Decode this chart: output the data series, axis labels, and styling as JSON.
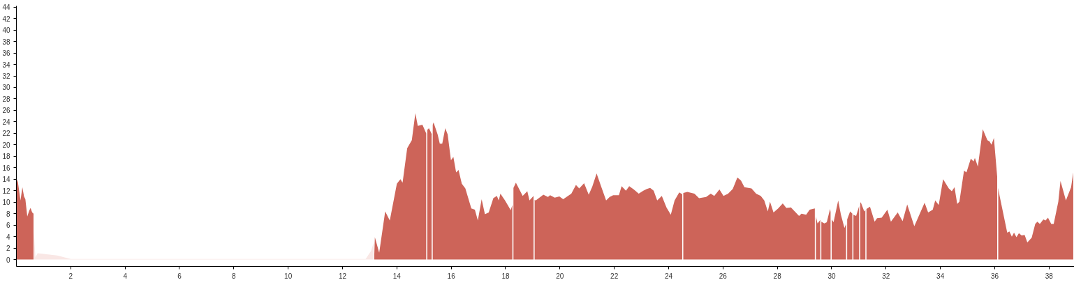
{
  "chart_data": {
    "type": "area",
    "xlim": [
      0,
      38.93
    ],
    "ylim": [
      -1.2,
      44.2
    ],
    "xticks": [
      2,
      4,
      6,
      8,
      10,
      12,
      14,
      16,
      18,
      20,
      22,
      24,
      26,
      28,
      30,
      32,
      34,
      36,
      38
    ],
    "yticks": [
      0,
      2,
      4,
      6,
      8,
      10,
      12,
      14,
      16,
      18,
      20,
      22,
      24,
      26,
      28,
      30,
      32,
      34,
      36,
      38,
      40,
      42,
      44
    ],
    "series": [
      {
        "color": "#f9e7e5",
        "x": [
          0.64,
          0.7,
          0.78,
          1.0,
          1.5,
          2.0,
          12.85,
          12.95,
          13.05,
          13.15
        ],
        "values": [
          5,
          0.4,
          1.1,
          1.0,
          0.7,
          0.1,
          0.1,
          0.8,
          1.5,
          3
        ]
      },
      {
        "color": "#cd6459",
        "x": [
          0,
          0.04,
          0.1,
          0.15,
          0.22,
          0.28,
          0.33,
          0.4,
          0.47,
          0.52,
          0.58,
          0.63,
          1.0,
          13.17,
          13.19,
          13.35,
          13.57,
          13.74,
          14.0,
          14.13,
          14.21,
          14.38,
          14.55,
          14.68,
          14.77,
          14.94,
          15.08,
          15.1,
          15.12,
          15.18,
          15.28,
          15.3,
          15.32,
          15.35,
          15.5,
          15.58,
          15.67,
          15.78,
          15.87,
          15.99,
          16.08,
          16.18,
          16.27,
          16.39,
          16.52,
          16.74,
          16.87,
          16.98,
          17.12,
          17.24,
          17.38,
          17.55,
          17.68,
          17.75,
          17.81,
          17.98,
          18.19,
          18.25,
          18.27,
          18.29,
          18.38,
          18.63,
          18.8,
          18.88,
          19.03,
          19.05,
          19.07,
          19.11,
          19.39,
          19.56,
          19.64,
          19.81,
          19.98,
          20.12,
          20.42,
          20.59,
          20.71,
          20.89,
          21.06,
          21.19,
          21.35,
          21.52,
          21.7,
          21.83,
          21.96,
          22.17,
          22.27,
          22.43,
          22.55,
          22.72,
          22.9,
          23.07,
          23.2,
          23.32,
          23.45,
          23.58,
          23.75,
          23.92,
          24.08,
          24.22,
          24.39,
          24.5,
          24.52,
          24.54,
          24.69,
          24.95,
          25.12,
          25.38,
          25.55,
          25.68,
          25.87,
          26.02,
          26.19,
          26.36,
          26.53,
          26.66,
          26.79,
          27.05,
          27.22,
          27.39,
          27.52,
          27.65,
          27.73,
          27.86,
          28.03,
          28.2,
          28.33,
          28.5,
          28.8,
          28.89,
          29.06,
          29.19,
          29.38,
          29.4,
          29.42,
          29.48,
          29.58,
          29.6,
          29.62,
          29.73,
          29.82,
          29.94,
          29.96,
          29.98,
          30.0,
          30.07,
          30.24,
          30.34,
          30.47,
          30.53,
          30.55,
          30.57,
          30.68,
          30.76,
          30.78,
          30.8,
          30.9,
          31.01,
          31.03,
          31.05,
          31.07,
          31.2,
          31.24,
          31.26,
          31.28,
          31.41,
          31.58,
          31.67,
          31.84,
          32.05,
          32.18,
          32.43,
          32.61,
          32.78,
          33.04,
          33.17,
          33.42,
          33.55,
          33.72,
          33.81,
          33.94,
          34.1,
          34.31,
          34.42,
          34.52,
          34.62,
          34.7,
          34.87,
          34.96,
          35.12,
          35.22,
          35.27,
          35.38,
          35.56,
          35.73,
          35.81,
          35.88,
          35.97,
          36.09,
          36.11,
          36.13,
          36.18,
          36.46,
          36.54,
          36.63,
          36.71,
          36.8,
          36.89,
          36.99,
          37.1,
          37.2,
          37.36,
          37.49,
          37.57,
          37.66,
          37.79,
          37.87,
          37.96,
          38.08,
          38.17,
          38.34,
          38.42,
          38.62,
          38.81,
          38.89
        ],
        "values": [
          13.2,
          14,
          12,
          10.3,
          12.6,
          11,
          10.5,
          7.5,
          8.5,
          9,
          8.2,
          8,
          null,
          1,
          3.9,
          1.2,
          8.4,
          6.8,
          13.2,
          14.0,
          13.4,
          19.4,
          20.8,
          25.5,
          23.3,
          23.5,
          22.0,
          null,
          22.6,
          22.9,
          21.9,
          null,
          23.5,
          23.9,
          21.8,
          20.2,
          20.2,
          22.9,
          21.8,
          17.3,
          17.9,
          15.2,
          15.6,
          13.2,
          12.4,
          8.9,
          8.7,
          6.8,
          10.5,
          7.9,
          8.2,
          10.7,
          11.1,
          10.3,
          11.5,
          10.3,
          8.6,
          9.5,
          null,
          12.5,
          13.4,
          11.1,
          11.9,
          10.3,
          11.1,
          null,
          10.4,
          10.3,
          11.3,
          10.9,
          11.2,
          10.8,
          11.0,
          10.5,
          11.5,
          13.0,
          12.4,
          13.3,
          11.3,
          12.7,
          15.0,
          12.7,
          10.3,
          10.9,
          11.2,
          11.2,
          12.8,
          12.0,
          12.8,
          12.2,
          11.5,
          12.0,
          12.3,
          12.5,
          12.0,
          10.3,
          11.1,
          9.1,
          7.8,
          10.3,
          11.7,
          11.4,
          null,
          11.6,
          11.8,
          11.5,
          10.7,
          10.9,
          11.5,
          11.1,
          12.2,
          11.1,
          11.5,
          12.3,
          14.3,
          13.8,
          12.6,
          12.4,
          11.5,
          11.1,
          10.3,
          8.4,
          10.1,
          8.2,
          8.9,
          9.8,
          9.0,
          9.1,
          7.6,
          8.0,
          7.8,
          8.7,
          8.9,
          null,
          7.5,
          6.3,
          6.9,
          null,
          6.6,
          6.3,
          6.5,
          8.8,
          8.3,
          null,
          7.0,
          6.5,
          10.3,
          7.8,
          5.5,
          6.2,
          null,
          7.0,
          8.4,
          8.0,
          null,
          7.8,
          7.6,
          9.3,
          null,
          9.8,
          10.0,
          8.4,
          8.6,
          null,
          8.8,
          9.2,
          6.6,
          7.2,
          7.3,
          8.7,
          6.6,
          8.2,
          6.7,
          9.6,
          5.8,
          7.2,
          9.9,
          8.2,
          8.7,
          10.3,
          9.5,
          14.0,
          12.4,
          11.9,
          12.6,
          9.7,
          10.1,
          15.5,
          15.2,
          17.6,
          17.1,
          17.7,
          16.2,
          22.7,
          20.8,
          20.6,
          20.0,
          21.2,
          14.5,
          null,
          12.5,
          11.1,
          4.7,
          4.9,
          4.0,
          4.7,
          3.9,
          4.6,
          4.2,
          4.3,
          3.0,
          3.8,
          6.2,
          6.6,
          6.2,
          7.0,
          6.8,
          7.3,
          6.2,
          6.2,
          10.1,
          13.7,
          10.3,
          12.6,
          15.2
        ]
      }
    ]
  }
}
